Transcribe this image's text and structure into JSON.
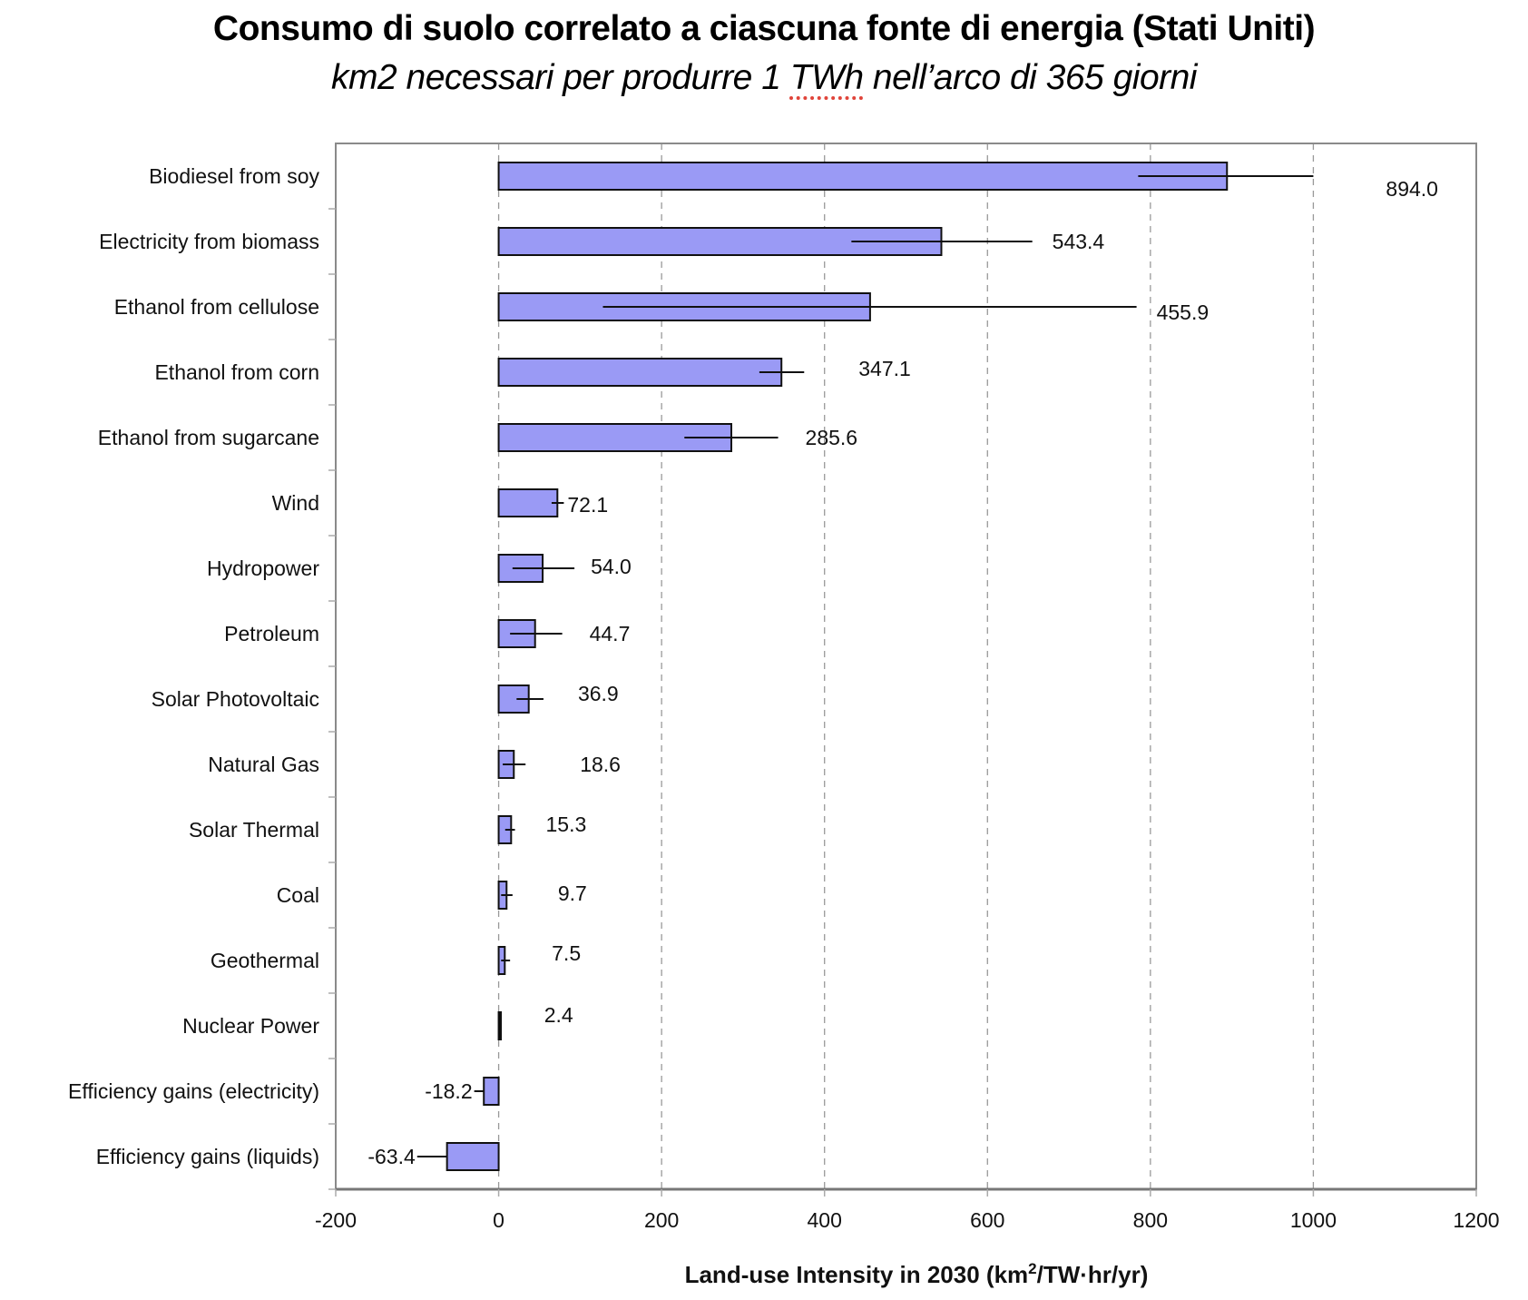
{
  "header": {
    "title": "Consumo di suolo correlato a ciascuna fonte di energia (Stati Uniti)",
    "subtitle_pre": "km2 necessari per produrre 1 ",
    "subtitle_flagged": "TWh",
    "subtitle_post": " nell’arco di 365 giorni"
  },
  "chart_data": {
    "type": "bar",
    "orientation": "horizontal",
    "title": "Consumo di suolo correlato a ciascuna fonte di energia (Stati Uniti)",
    "subtitle": "km2 necessari per produrre 1 TWh nell’arco di 365 giorni",
    "xlabel": "Land-use Intensity in 2030  (km²/TW·hr/yr)",
    "xlabel_main": "Land-use Intensity in 2030  (km",
    "xlabel_sup": "2",
    "xlabel_tail": "/TW·hr/yr)",
    "ylabel": "",
    "xlim": [
      -200,
      1200
    ],
    "xticks": [
      -200,
      0,
      200,
      400,
      600,
      800,
      1000,
      1200
    ],
    "xtick_labels": [
      "-200",
      "0",
      "200",
      "400",
      "600",
      "800",
      "1000",
      "1200"
    ],
    "grid": "vertical dashed",
    "bar_color": "#9a9af5",
    "categories": [
      "Biodiesel from soy",
      "Electricity from biomass",
      "Ethanol from cellulose",
      "Ethanol from corn",
      "Ethanol from sugarcane",
      "Wind",
      "Hydropower",
      "Petroleum",
      "Solar Photovoltaic",
      "Natural Gas",
      "Solar Thermal",
      "Coal",
      "Geothermal",
      "Nuclear Power",
      "Efficiency gains (electricity)",
      "Efficiency gains (liquids)"
    ],
    "values": [
      894.0,
      543.4,
      455.9,
      347.1,
      285.6,
      72.1,
      54.0,
      44.7,
      36.9,
      18.6,
      15.3,
      9.7,
      7.5,
      2.4,
      -18.2,
      -63.4
    ],
    "value_labels": [
      "894.0",
      "543.4",
      "455.9",
      "347.1",
      "285.6",
      "72.1",
      "54.0",
      "44.7",
      "36.9",
      "18.6",
      "15.3",
      "9.7",
      "7.5",
      "2.4",
      "-18.2",
      "-63.4"
    ],
    "error_ranges": [
      [
        785,
        1000
      ],
      [
        433,
        655
      ],
      [
        128,
        783
      ],
      [
        320,
        375
      ],
      [
        228,
        343
      ],
      [
        65,
        80
      ],
      [
        17,
        93
      ],
      [
        14,
        78
      ],
      [
        22,
        55
      ],
      [
        5,
        33
      ],
      [
        8,
        20
      ],
      [
        3,
        17
      ],
      [
        3,
        14
      ],
      [
        2.4,
        2.4
      ],
      [
        -30,
        -18.2
      ],
      [
        -100,
        -63.4
      ]
    ]
  }
}
